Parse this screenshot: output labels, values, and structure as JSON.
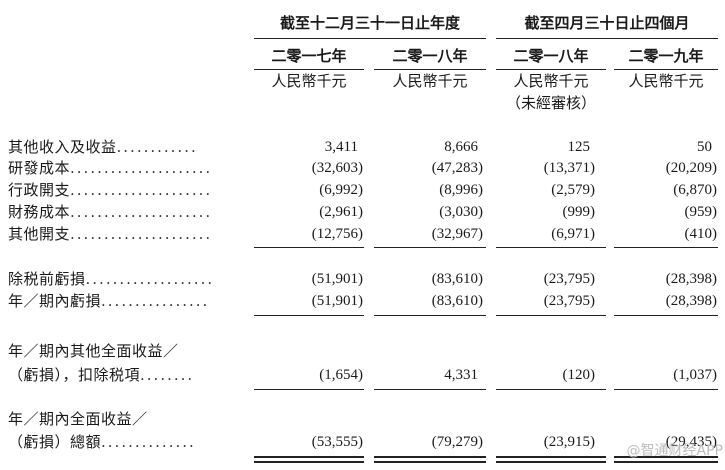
{
  "header": {
    "group_year": "截至十二月三十一日止年度",
    "group_months": "截至四月三十日止四個月",
    "columns": [
      {
        "period": "二零一七年",
        "unit": "人民幣千元",
        "note": ""
      },
      {
        "period": "二零一八年",
        "unit": "人民幣千元",
        "note": ""
      },
      {
        "period": "二零一八年",
        "unit": "人民幣千元",
        "note": "（未經審核）"
      },
      {
        "period": "二零一九年",
        "unit": "人民幣千元",
        "note": ""
      }
    ]
  },
  "rows": [
    {
      "label": "其他收入及收益",
      "dots": "............",
      "values": [
        "3,411",
        "8,666",
        "125",
        "50"
      ]
    },
    {
      "label": "研發成本",
      "dots": ".....................",
      "values": [
        "(32,603)",
        "(47,283)",
        "(13,371)",
        "(20,209)"
      ]
    },
    {
      "label": "行政開支",
      "dots": ".....................",
      "values": [
        "(6,992)",
        "(8,996)",
        "(2,579)",
        "(6,870)"
      ]
    },
    {
      "label": "財務成本",
      "dots": ".....................",
      "values": [
        "(2,961)",
        "(3,030)",
        "(999)",
        "(959)"
      ]
    },
    {
      "label": "其他開支",
      "dots": ".....................",
      "values": [
        "(12,756)",
        "(32,967)",
        "(6,971)",
        "(410)"
      ]
    },
    {
      "label": "除税前虧損",
      "dots": "...................",
      "values": [
        "(51,901)",
        "(83,610)",
        "(23,795)",
        "(28,398)"
      ]
    },
    {
      "label": "年／期內虧損",
      "dots": "................",
      "values": [
        "(51,901)",
        "(83,610)",
        "(23,795)",
        "(28,398)"
      ]
    },
    {
      "label": "年／期內其他全面收益／",
      "dots": "",
      "values": [
        "",
        "",
        "",
        ""
      ]
    },
    {
      "label": "（虧損），扣除税項",
      "dots": "........",
      "values": [
        "(1,654)",
        "4,331",
        "(120)",
        "(1,037)"
      ]
    },
    {
      "label": "年／期內全面收益／",
      "dots": "",
      "values": [
        "",
        "",
        "",
        ""
      ]
    },
    {
      "label": "（虧損）總額",
      "dots": "..............",
      "values": [
        "(53,555)",
        "(79,279)",
        "(23,915)",
        "(29,435)"
      ]
    }
  ],
  "watermark": "@智通财经APP"
}
